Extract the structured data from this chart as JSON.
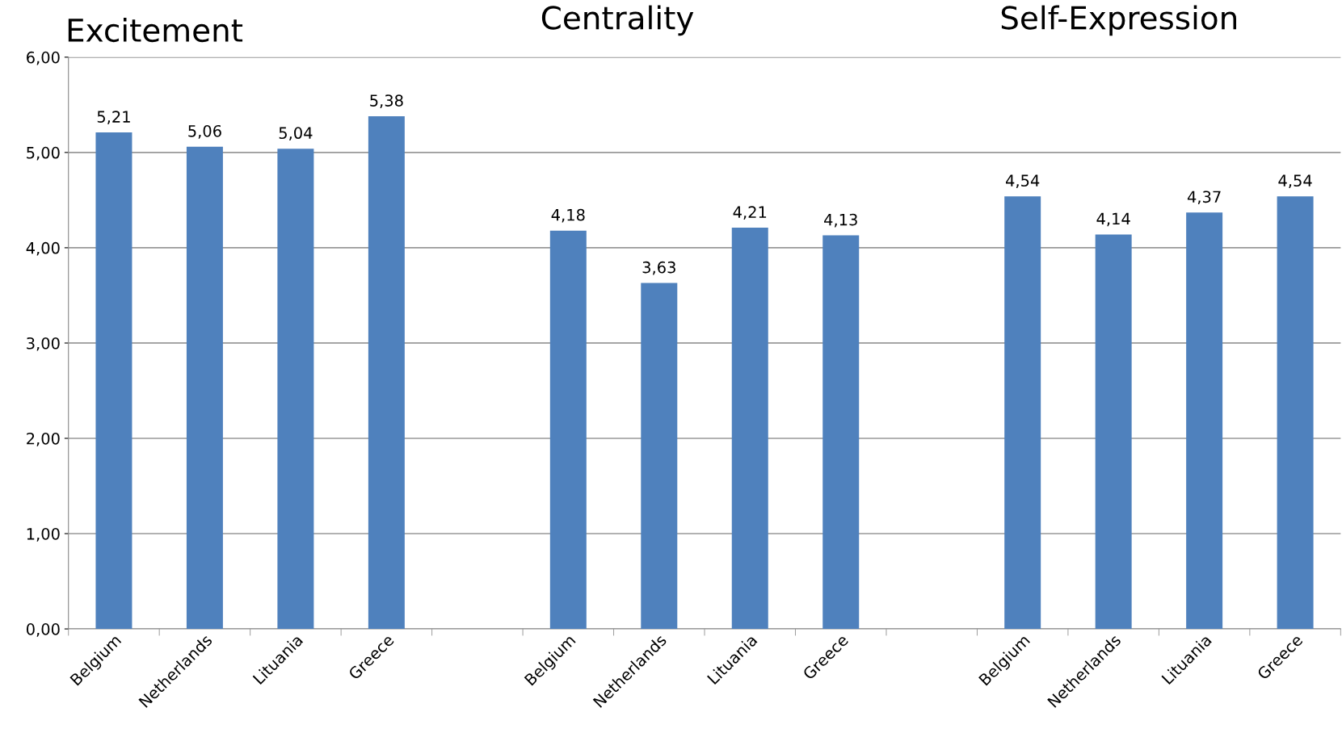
{
  "chart_data": {
    "type": "bar",
    "categories": [
      "Belgium",
      "Netherlands",
      "Lituania",
      "Greece",
      null,
      "Belgium",
      "Netherlands",
      "Lituania",
      "Greece",
      null,
      "Belgium",
      "Netherlands",
      "Lituania",
      "Greece"
    ],
    "values": [
      5.21,
      5.06,
      5.04,
      5.38,
      null,
      4.18,
      3.63,
      4.21,
      4.13,
      null,
      4.54,
      4.14,
      4.37,
      4.54
    ],
    "value_labels": [
      "5,21",
      "5,06",
      "5,04",
      "5,38",
      null,
      "4,18",
      "3,63",
      "4,21",
      "4,13",
      null,
      "4,54",
      "4,14",
      "4,37",
      "4,54"
    ],
    "color": "#4f81bd",
    "annotations": [
      "Excitement",
      "Centrality",
      "Self-Expression"
    ],
    "ylim": [
      0,
      6
    ],
    "yticks": [
      {
        "value": 0,
        "label": "0,00"
      },
      {
        "value": 1,
        "label": "1,00"
      },
      {
        "value": 2,
        "label": "2,00"
      },
      {
        "value": 3,
        "label": "3,00"
      },
      {
        "value": 4,
        "label": "4,00"
      },
      {
        "value": 5,
        "label": "5,00"
      },
      {
        "value": 6,
        "label": "6,00"
      }
    ],
    "grid": "y",
    "legend": false
  }
}
